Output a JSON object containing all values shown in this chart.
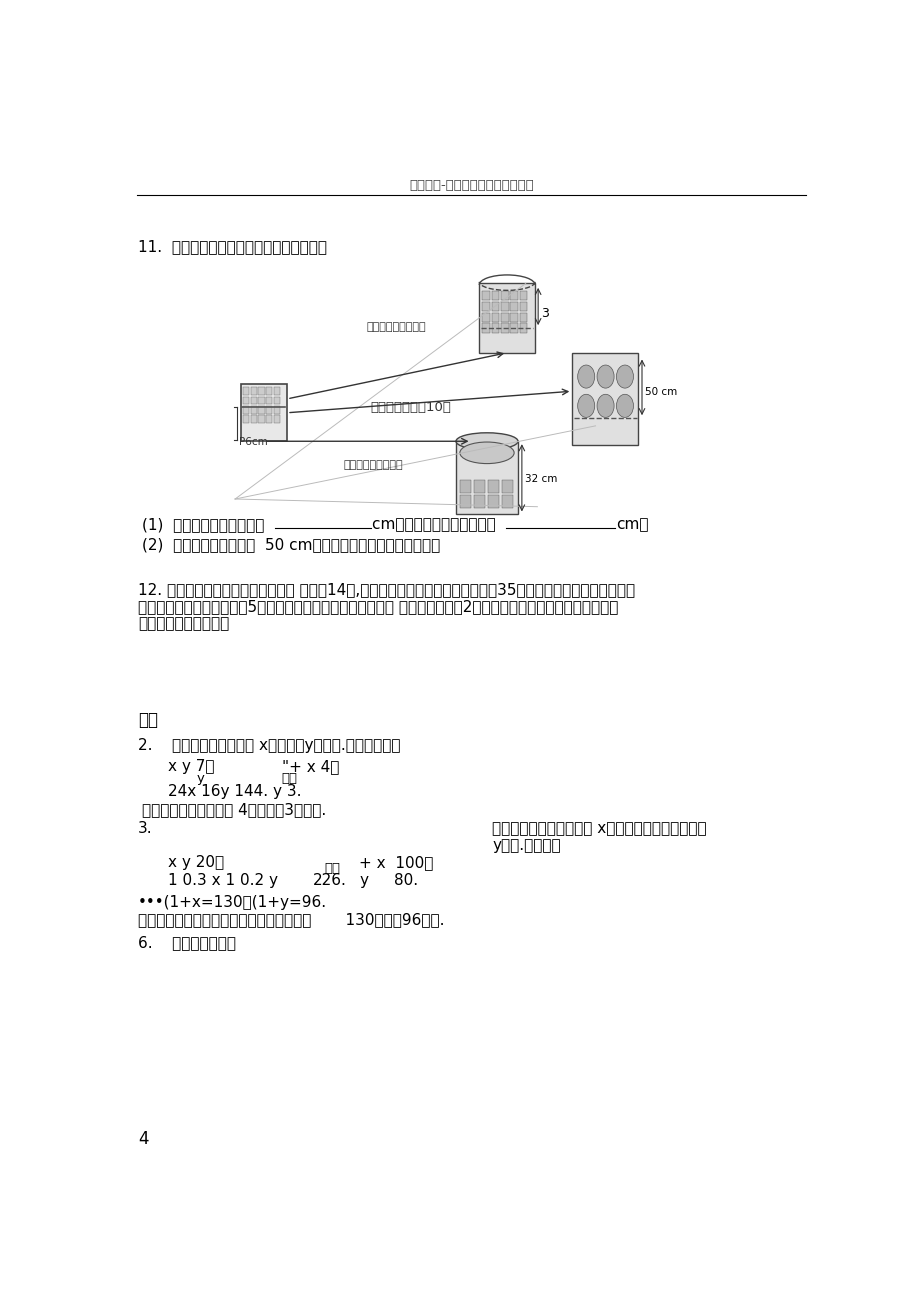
{
  "header_text": "百度文库-让每个人平等地提升自我",
  "page_number": "4",
  "bg_color": "#ffffff",
  "q11_title": "11.  根据图中给出的信息，解答下列问题：",
  "q11_sub1a": "(1)  放入一个小球水面升高 ",
  "q11_sub1b": "cm，放入一个大球水面升高 ",
  "q11_sub1c": "cm；",
  "q11_sub2": "(2)  如果要使水面上升到  50 cm，应放入大球、小球各多少个？",
  "q12_line1": "12. 一个长方形的养鸡场的长边靠墙 ，墙长14米,其他三边用竹篱笆围成，现有长为35米的竹篱笆，小王打算用它围",
  "q12_line2": "成一个鸡场，其中长比宽多5米；小赵也打算用它围成一个鸡场 ，其中长比宽多2米，谁的设计符合实际，按照他的设",
  "q12_line3": "计，鸡场的面积多大？",
  "answer_title": "答案",
  "ans2_intro": "2.    设这天早上该班分到 x件牛奶，y件面包.根据题意，得",
  "ans2_eq1l": "x y 7，",
  "ans2_eq1r": "\"+ x 4，",
  "ans2_eq2l": "24x 16y 144. y 3.",
  "ans2_solve": "解得",
  "ans2_y": "y",
  "ans2_result": "答：这天早上该班分到 4件牛奶，3件面包.",
  "ans3_num": "3.",
  "ans3_eq1l": "x y 20，",
  "ans3_eq2l": "1 0.3 x 1 0.2 y",
  "ans3_eq2mid": "226.",
  "ans3_solve": "解得",
  "ans3_eq1r": "+ x  100，",
  "ans3_eq2r_label": "y",
  "ans3_eq2r": "80.",
  "ans3_right1": "设去年外来旅游的人数为 x万人，外出旅游的人数为",
  "ans3_right2": "y万人.由题意得",
  "ans3_dots": "•••(1+x=130，(1+y=96.",
  "ans3_result": "答：该市今年外来和外出旅游的人数分别是       130万人和96万人.",
  "ans6_line": "6.    根据题意，得："
}
